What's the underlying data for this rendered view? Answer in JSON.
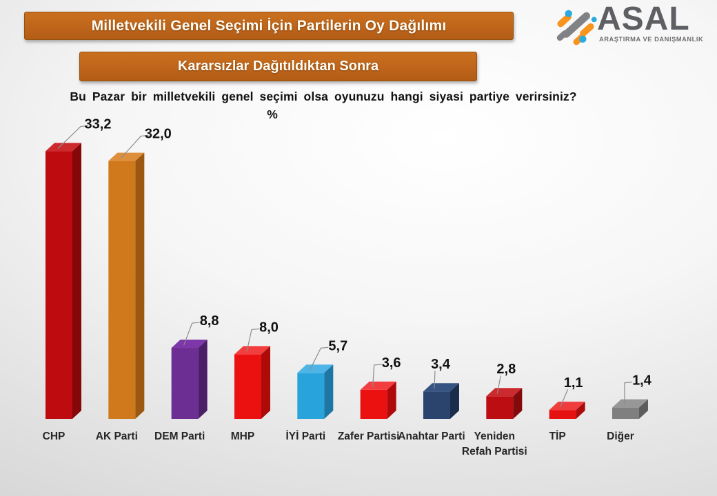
{
  "header": {
    "title_banner": "Milletvekili Genel Seçimi İçin Partilerin Oy Dağılımı",
    "subtitle_banner": "Kararsızlar Dağıtıldıktan Sonra",
    "logo": {
      "name": "ASAL",
      "tagline": "ARAŞTIRMA VE DANIŞMANLIK",
      "icon_colors": {
        "orange": "#F7941E",
        "gray": "#808285",
        "blue": "#29ABE2"
      }
    }
  },
  "question": "Bu Pazar bir milletvekili genel seçimi olsa oyunuzu hangi siyasi partiye verirsiniz?",
  "unit_label": "%",
  "colors": {
    "banner_bg": "#BF651B",
    "banner_border": "#94520F",
    "banner_text": "#FDFDF5",
    "leader_line": "#8C8C8C",
    "value_text": "#111111",
    "category_text": "#262626"
  },
  "chart_data": {
    "type": "bar",
    "style": "3d-column",
    "title": "Bu Pazar bir milletvekili genel seçimi olsa oyunuzu hangi siyasi partiye verirsiniz?",
    "xlabel": "",
    "ylabel": "%",
    "ylim": [
      0,
      35
    ],
    "grid": false,
    "legend": false,
    "categories": [
      "CHP",
      "AK Parti",
      "DEM Parti",
      "MHP",
      "İYİ Parti",
      "Zafer Partisi",
      "Anahtar Parti",
      "Yeniden Refah Partisi",
      "TİP",
      "Diğer"
    ],
    "values": [
      33.2,
      32.0,
      8.8,
      8.0,
      5.7,
      3.6,
      3.4,
      2.8,
      1.1,
      1.4
    ],
    "value_labels": [
      "33,2",
      "32,0",
      "8,8",
      "8,0",
      "5,7",
      "3,6",
      "3,4",
      "2,8",
      "1,1",
      "1,4"
    ],
    "bar_colors": [
      {
        "front": "#BE0B10",
        "top": "#CD2A2E",
        "side": "#850708"
      },
      {
        "front": "#D0781C",
        "top": "#DE8F3D",
        "side": "#9C5810"
      },
      {
        "front": "#6C2E92",
        "top": "#7D37A8",
        "side": "#4B1F68"
      },
      {
        "front": "#EC1111",
        "top": "#F23E3E",
        "side": "#AD0A0A"
      },
      {
        "front": "#29A3DC",
        "top": "#4DB5E7",
        "side": "#1D76A3"
      },
      {
        "front": "#EC1111",
        "top": "#F23E3E",
        "side": "#AD0A0A"
      },
      {
        "front": "#2A446E",
        "top": "#375381",
        "side": "#1B2D4C"
      },
      {
        "front": "#BB0D12",
        "top": "#CB2A2E",
        "side": "#84090B"
      },
      {
        "front": "#E61212",
        "top": "#EF3C3C",
        "side": "#A90C0C"
      },
      {
        "front": "#7F7F7F",
        "top": "#979797",
        "side": "#5C5C5C"
      }
    ]
  }
}
